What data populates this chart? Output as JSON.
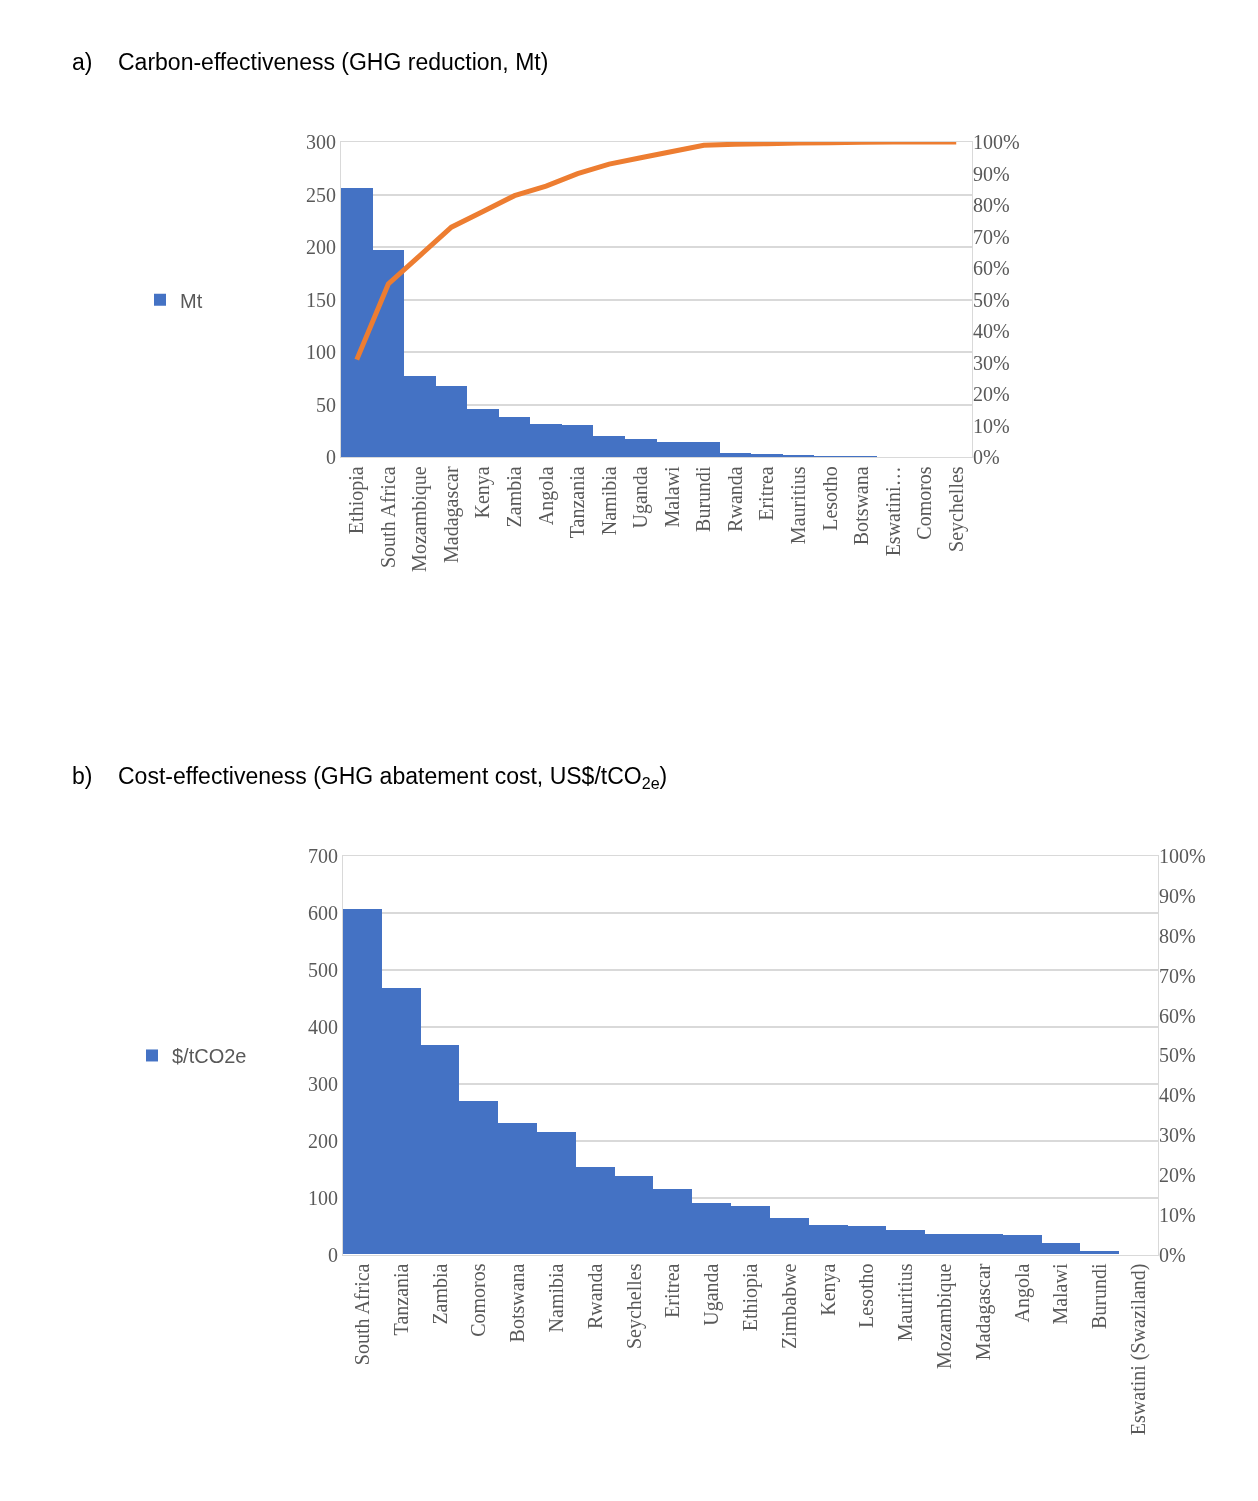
{
  "chart_data": [
    {
      "type": "bar",
      "title": "a)    Carbon-effectiveness (GHG reduction, Mt)",
      "categories": [
        "Ethiopia",
        "South Africa",
        "Mozambique",
        "Madagascar",
        "Kenya",
        "Zambia",
        "Angola",
        "Tanzania",
        "Namibia",
        "Uganda",
        "Malawi",
        "Burundi",
        "Rwanda",
        "Eritrea",
        "Mauritius",
        "Lesotho",
        "Botswana",
        "Eswatini…",
        "Comoros",
        "Seychelles"
      ],
      "series": [
        {
          "name": "Mt",
          "color": "#4472c4",
          "values": [
            256,
            197,
            77,
            68,
            46,
            38,
            32,
            31,
            20,
            17,
            15,
            15,
            4,
            3,
            2,
            1,
            1,
            0,
            0,
            0
          ]
        },
        {
          "type": "line",
          "axis": "y2",
          "color": "#ed7d31",
          "values": [
            31,
            55,
            64,
            73,
            78,
            83,
            86,
            90,
            93,
            95,
            97,
            99,
            99.3,
            99.5,
            99.7,
            99.8,
            99.9,
            100,
            100,
            100
          ]
        }
      ],
      "ylim": [
        0,
        300
      ],
      "yticks": [
        0,
        50,
        100,
        150,
        200,
        250,
        300
      ],
      "y2lim": [
        0,
        100
      ],
      "y2ticks": [
        {
          "value": 0,
          "label": "0%"
        },
        {
          "value": 10,
          "label": "10%"
        },
        {
          "value": 20,
          "label": "20%"
        },
        {
          "value": 30,
          "label": "30%"
        },
        {
          "value": 40,
          "label": "40%"
        },
        {
          "value": 50,
          "label": "50%"
        },
        {
          "value": 60,
          "label": "60%"
        },
        {
          "value": 70,
          "label": "70%"
        },
        {
          "value": 80,
          "label": "80%"
        },
        {
          "value": 90,
          "label": "90%"
        },
        {
          "value": 100,
          "label": "100%"
        }
      ],
      "grid": "y",
      "legend": "left"
    },
    {
      "type": "bar",
      "title": "b)    Cost-effectiveness (GHG abatement cost, US$/tCO$_{2e}$)",
      "categories": [
        "South Africa",
        "Tanzania",
        "Zambia",
        "Comoros",
        "Botswana",
        "Namibia",
        "Rwanda",
        "Seychelles",
        "Eritrea",
        "Uganda",
        "Ethiopia",
        "Zimbabwe",
        "Kenya",
        "Lesotho",
        "Mauritius",
        "Mozambique",
        "Madagascar",
        "Angola",
        "Malawi",
        "Burundi",
        "Eswatini (Swaziland)"
      ],
      "series": [
        {
          "name": "$/tCO2e",
          "color": "#4472c4",
          "values": [
            606,
            468,
            367,
            270,
            230,
            215,
            153,
            138,
            115,
            89,
            84,
            63,
            52,
            49,
            42,
            35,
            35,
            34,
            20,
            6,
            0
          ]
        }
      ],
      "ylim": [
        0,
        700
      ],
      "yticks": [
        0,
        100,
        200,
        300,
        400,
        500,
        600,
        700
      ],
      "y2lim": [
        0,
        100
      ],
      "y2ticks": [
        {
          "value": 0,
          "label": "0%"
        },
        {
          "value": 10,
          "label": "10%"
        },
        {
          "value": 20,
          "label": "20%"
        },
        {
          "value": 30,
          "label": "30%"
        },
        {
          "value": 40,
          "label": "40%"
        },
        {
          "value": 50,
          "label": "50%"
        },
        {
          "value": 60,
          "label": "60%"
        },
        {
          "value": 70,
          "label": "70%"
        },
        {
          "value": 80,
          "label": "80%"
        },
        {
          "value": 90,
          "label": "90%"
        },
        {
          "value": 100,
          "label": "100%"
        }
      ],
      "grid": "y",
      "legend": "left"
    }
  ]
}
